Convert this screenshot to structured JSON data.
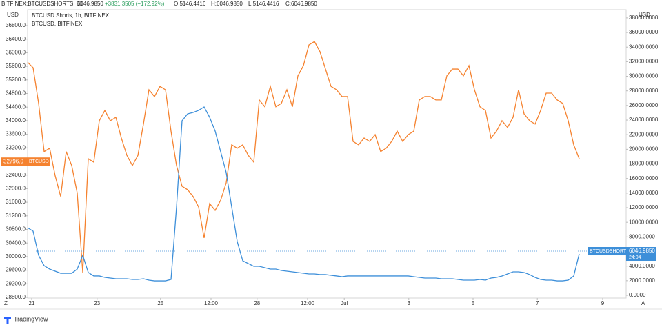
{
  "chart_data": {
    "type": "line",
    "header": {
      "symbol": "BITFINEX:BTCUSDSHORTS, 60",
      "price": "6046.9850",
      "change": "+3831.3505 (+172.92%)",
      "open": "O:5146.4416",
      "high": "H:6046.9850",
      "low": "L:5146.4416",
      "close": "C:6046.9850"
    },
    "legend_lines": [
      "BTCUSD Shorts, 1h, BITFINEX",
      "BTCUSD, BITFINEX"
    ],
    "ylabel": "USD",
    "y2label": "USD",
    "buttons": [
      "Z",
      "A"
    ],
    "countdown": "24:04",
    "brand": "TradingView",
    "xlim": [
      0,
      108.5
    ],
    "xticks": [
      {
        "value": 0.75,
        "label": "21"
      },
      {
        "value": 12.6,
        "label": "23"
      },
      {
        "value": 24.1,
        "label": "25"
      },
      {
        "value": 33.25,
        "label": "12:00"
      },
      {
        "value": 41.6,
        "label": "28"
      },
      {
        "value": 50.75,
        "label": "12:00"
      },
      {
        "value": 57.4,
        "label": "Jul"
      },
      {
        "value": 69.1,
        "label": "3"
      },
      {
        "value": 80.75,
        "label": "5"
      },
      {
        "value": 92.4,
        "label": "7"
      },
      {
        "value": 104.25,
        "label": "9"
      }
    ],
    "ylim": [
      28780,
      37267
    ],
    "yticks": [
      {
        "value": 28800,
        "label": "28800.0"
      },
      {
        "value": 29200,
        "label": "29200.0"
      },
      {
        "value": 29600,
        "label": "29600.0"
      },
      {
        "value": 30000,
        "label": "30000.0"
      },
      {
        "value": 30400,
        "label": "30400.0"
      },
      {
        "value": 30800,
        "label": "30800.0"
      },
      {
        "value": 31200,
        "label": "31200.0"
      },
      {
        "value": 31600,
        "label": "31600.0"
      },
      {
        "value": 32000,
        "label": "32000.0"
      },
      {
        "value": 32400,
        "label": "32400.0"
      },
      {
        "value": 32800,
        "label": "32800.0"
      },
      {
        "value": 33200,
        "label": "33200.0"
      },
      {
        "value": 33600,
        "label": "33600.0"
      },
      {
        "value": 34000,
        "label": "34000.0"
      },
      {
        "value": 34400,
        "label": "34400.0"
      },
      {
        "value": 34800,
        "label": "34800.0"
      },
      {
        "value": 35200,
        "label": "35200.0"
      },
      {
        "value": 35600,
        "label": "35600.0"
      },
      {
        "value": 36000,
        "label": "36000.0"
      },
      {
        "value": 36400,
        "label": "36400.0"
      },
      {
        "value": 36800,
        "label": "36800.0"
      }
    ],
    "y2lim": [
      -378,
      39123
    ],
    "y2ticks": [
      {
        "value": 0,
        "label": "0.0000"
      },
      {
        "value": 2000,
        "label": "2000.0000"
      },
      {
        "value": 4000,
        "label": "4000.0000"
      },
      {
        "value": 6000,
        "label": "6000.0000"
      },
      {
        "value": 8000,
        "label": "8000.0000"
      },
      {
        "value": 10000,
        "label": "10000.0000"
      },
      {
        "value": 12000,
        "label": "12000.0000"
      },
      {
        "value": 14000,
        "label": "14000.0000"
      },
      {
        "value": 16000,
        "label": "16000.0000"
      },
      {
        "value": 18000,
        "label": "18000.0000"
      },
      {
        "value": 20000,
        "label": "20000.0000"
      },
      {
        "value": 22000,
        "label": "22000.0000"
      },
      {
        "value": 24000,
        "label": "24000.0000"
      },
      {
        "value": 26000,
        "label": "26000.0000"
      },
      {
        "value": 28000,
        "label": "28000.0000"
      },
      {
        "value": 30000,
        "label": "30000.0000"
      },
      {
        "value": 32000,
        "label": "32000.0000"
      },
      {
        "value": 34000,
        "label": "34000.0000"
      },
      {
        "value": 36000,
        "label": "36000.0000"
      },
      {
        "value": 38000,
        "label": "38000.0000"
      }
    ],
    "series": [
      {
        "name": "BTCUSD",
        "color": "#f5822f",
        "axis": "y",
        "last": {
          "value": 32796,
          "label": "32796.0"
        },
        "values": [
          35720,
          35560,
          34510,
          33090,
          33190,
          32380,
          31770,
          33090,
          32680,
          31870,
          29530,
          32880,
          32780,
          34000,
          34300,
          34000,
          34100,
          33490,
          32980,
          32680,
          32980,
          33900,
          34910,
          34710,
          35010,
          34910,
          33690,
          32680,
          32070,
          31970,
          31770,
          31460,
          30550,
          31560,
          31360,
          31660,
          32170,
          33290,
          33190,
          33290,
          32980,
          32780,
          34610,
          34410,
          35010,
          34410,
          34510,
          34910,
          34410,
          35320,
          35620,
          36230,
          36330,
          36030,
          35520,
          35010,
          34910,
          34710,
          34710,
          33390,
          33290,
          33490,
          33390,
          33590,
          33090,
          33190,
          33390,
          33690,
          33390,
          33590,
          33690,
          34610,
          34710,
          34710,
          34610,
          34610,
          35320,
          35520,
          35520,
          35320,
          35620,
          34910,
          34410,
          34300,
          33490,
          33690,
          34000,
          33800,
          34100,
          34910,
          34200,
          34000,
          33900,
          34300,
          34810,
          34810,
          34610,
          34510,
          34000,
          33290,
          32880
        ]
      },
      {
        "name": "BTCUSDSHORTS",
        "color": "#3d8fd9",
        "axis": "y2",
        "last": {
          "value": 6046.985,
          "label": "6046.9850"
        },
        "values": [
          9260,
          8790,
          5480,
          4060,
          3590,
          3310,
          3020,
          3020,
          3020,
          3590,
          5480,
          3120,
          2650,
          2650,
          2460,
          2360,
          2270,
          2270,
          2270,
          2170,
          2170,
          2270,
          2080,
          1980,
          1980,
          1980,
          2170,
          12100,
          23910,
          24850,
          25040,
          25330,
          25800,
          24380,
          22490,
          19660,
          16820,
          12100,
          7370,
          4730,
          4350,
          3970,
          3970,
          3780,
          3590,
          3590,
          3400,
          3310,
          3210,
          3120,
          3020,
          2930,
          2930,
          2840,
          2840,
          2740,
          2650,
          2550,
          2650,
          2650,
          2650,
          2650,
          2650,
          2650,
          2650,
          2650,
          2650,
          2650,
          2650,
          2650,
          2550,
          2460,
          2360,
          2360,
          2360,
          2270,
          2270,
          2270,
          2170,
          2080,
          2080,
          2080,
          2170,
          2080,
          2360,
          2460,
          2650,
          2930,
          3210,
          3210,
          3120,
          2840,
          2460,
          2170,
          2080,
          2080,
          1980,
          1980,
          2080,
          2650,
          5670
        ]
      }
    ]
  }
}
